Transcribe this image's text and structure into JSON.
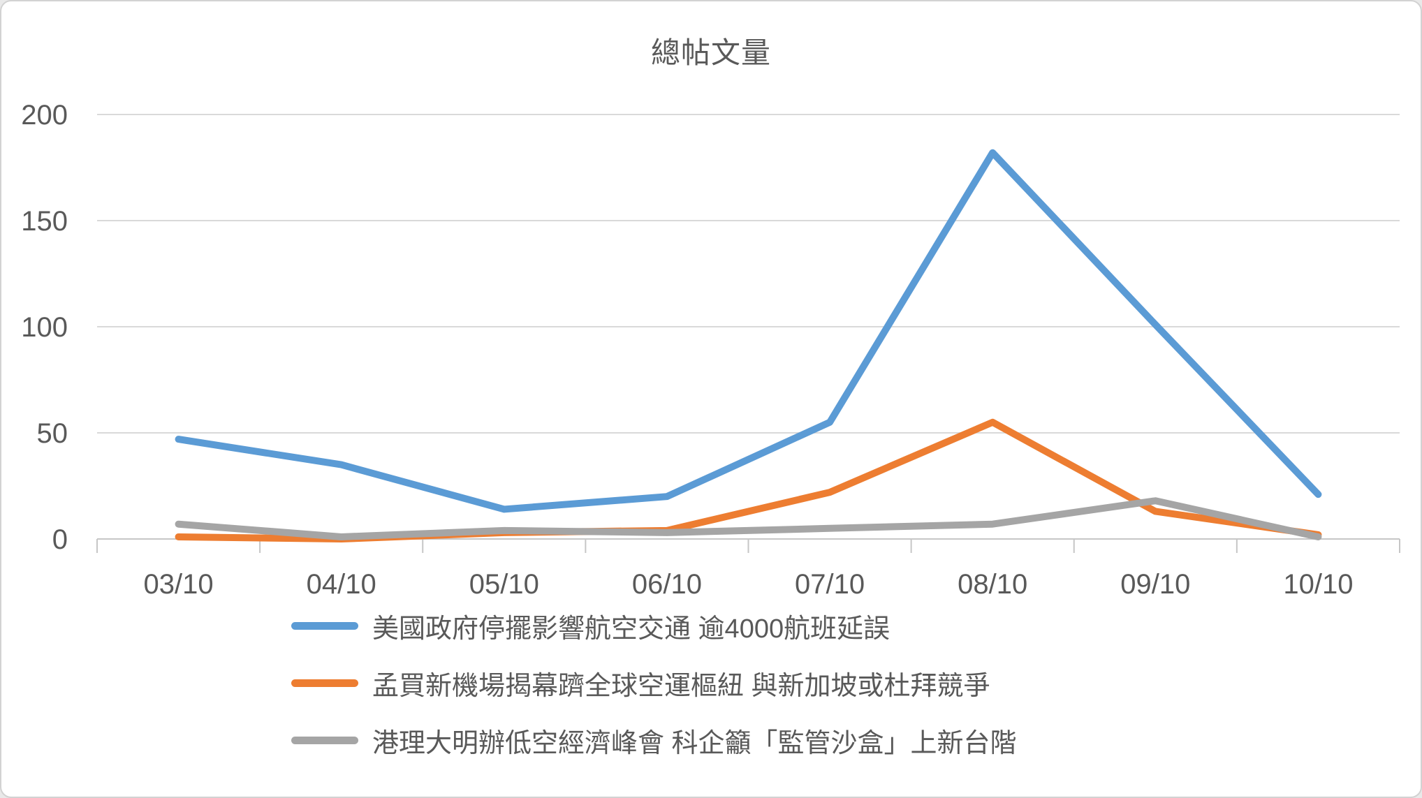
{
  "chart_data": {
    "type": "line",
    "title": "總帖文量",
    "categories": [
      "03/10",
      "04/10",
      "05/10",
      "06/10",
      "07/10",
      "08/10",
      "09/10",
      "10/10"
    ],
    "series": [
      {
        "name": "美國政府停擺影響航空交通 逾4000航班延誤",
        "color": "#5B9BD5",
        "values": [
          47,
          35,
          14,
          20,
          55,
          182,
          101,
          21
        ]
      },
      {
        "name": "孟買新機場揭幕躋全球空運樞紐 與新加坡或杜拜競爭",
        "color": "#ED7D31",
        "values": [
          1,
          0,
          3,
          4,
          22,
          55,
          13,
          2
        ]
      },
      {
        "name": "港理大明辦低空經濟峰會 科企籲「監管沙盒」上新台階",
        "color": "#A5A5A5",
        "values": [
          7,
          1,
          4,
          3,
          5,
          7,
          18,
          1
        ]
      }
    ],
    "y_axis": {
      "min": 0,
      "max": 200,
      "ticks": [
        0,
        50,
        100,
        150,
        200
      ]
    },
    "grid": true,
    "legend_position": "bottom",
    "text_color": "#595959",
    "grid_color": "#D9D9D9",
    "axis_color": "#C6C6C6"
  }
}
